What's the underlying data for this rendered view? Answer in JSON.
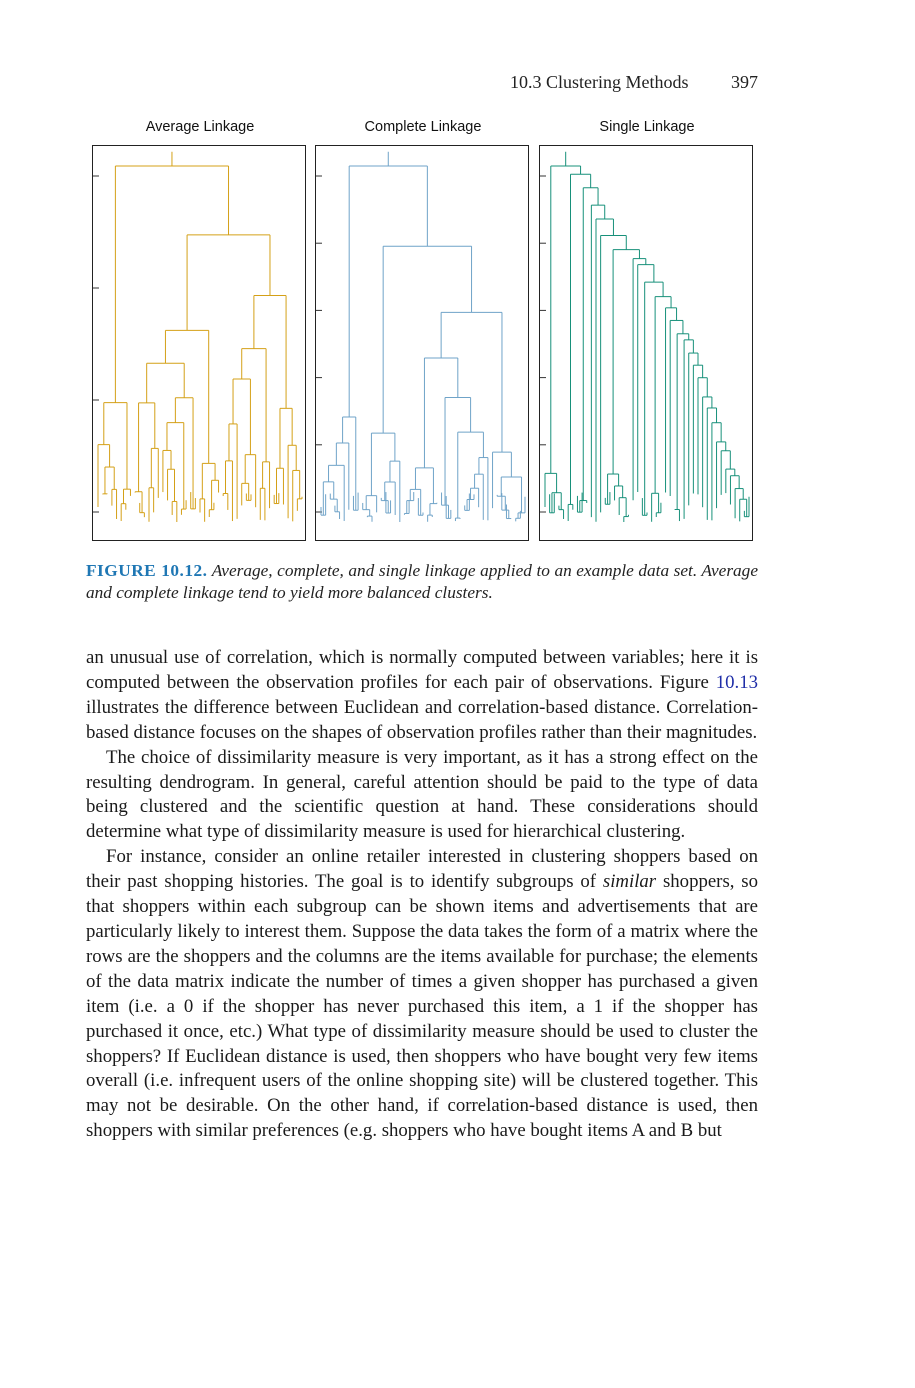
{
  "header": {
    "section": "10.3 Clustering Methods",
    "page_number": "397"
  },
  "figure": {
    "panels": [
      {
        "title": "Average Linkage",
        "color": "#d4a017",
        "style": "avg"
      },
      {
        "title": "Complete Linkage",
        "color": "#6fa3c8",
        "style": "cmp"
      },
      {
        "title": "Single Linkage",
        "color": "#17907a",
        "style": "sgl"
      }
    ],
    "caption_label": "FIGURE 10.12.",
    "caption_text": "Average, complete, and single linkage applied to an example data set. Average and complete linkage tend to yield more balanced clusters."
  },
  "body": {
    "p1_a": "an unusual use of correlation, which is normally computed between variables; here it is computed between the observation profiles for each pair of observations. Figure ",
    "p1_ref": "10.13",
    "p1_b": " illustrates the difference between Euclidean and correlation-based distance. Correlation-based distance focuses on the shapes of observation profiles rather than their magnitudes.",
    "p2": "The choice of dissimilarity measure is very important, as it has a strong effect on the resulting dendrogram. In general, careful attention should be paid to the type of data being clustered and the scientific question at hand. These considerations should determine what type of dissimilarity measure is used for hierarchical clustering.",
    "p3_a": "For instance, consider an online retailer interested in clustering shoppers based on their past shopping histories. The goal is to identify subgroups of ",
    "p3_em": "similar",
    "p3_b": " shoppers, so that shoppers within each subgroup can be shown items and advertisements that are particularly likely to interest them. Suppose the data takes the form of a matrix where the rows are the shoppers and the columns are the items available for purchase; the elements of the data matrix indicate the number of times a given shopper has purchased a given item (i.e. a 0 if the shopper has never purchased this item, a 1 if the shopper has purchased it once, etc.) What type of dissimilarity measure should be used to cluster the shoppers? If Euclidean distance is used, then shoppers who have bought very few items overall (i.e. infrequent users of the online shopping site) will be clustered together. This may not be desirable. On the other hand, if correlation-based distance is used, then shoppers with similar preferences (e.g. shoppers who have bought items A and B but"
  }
}
